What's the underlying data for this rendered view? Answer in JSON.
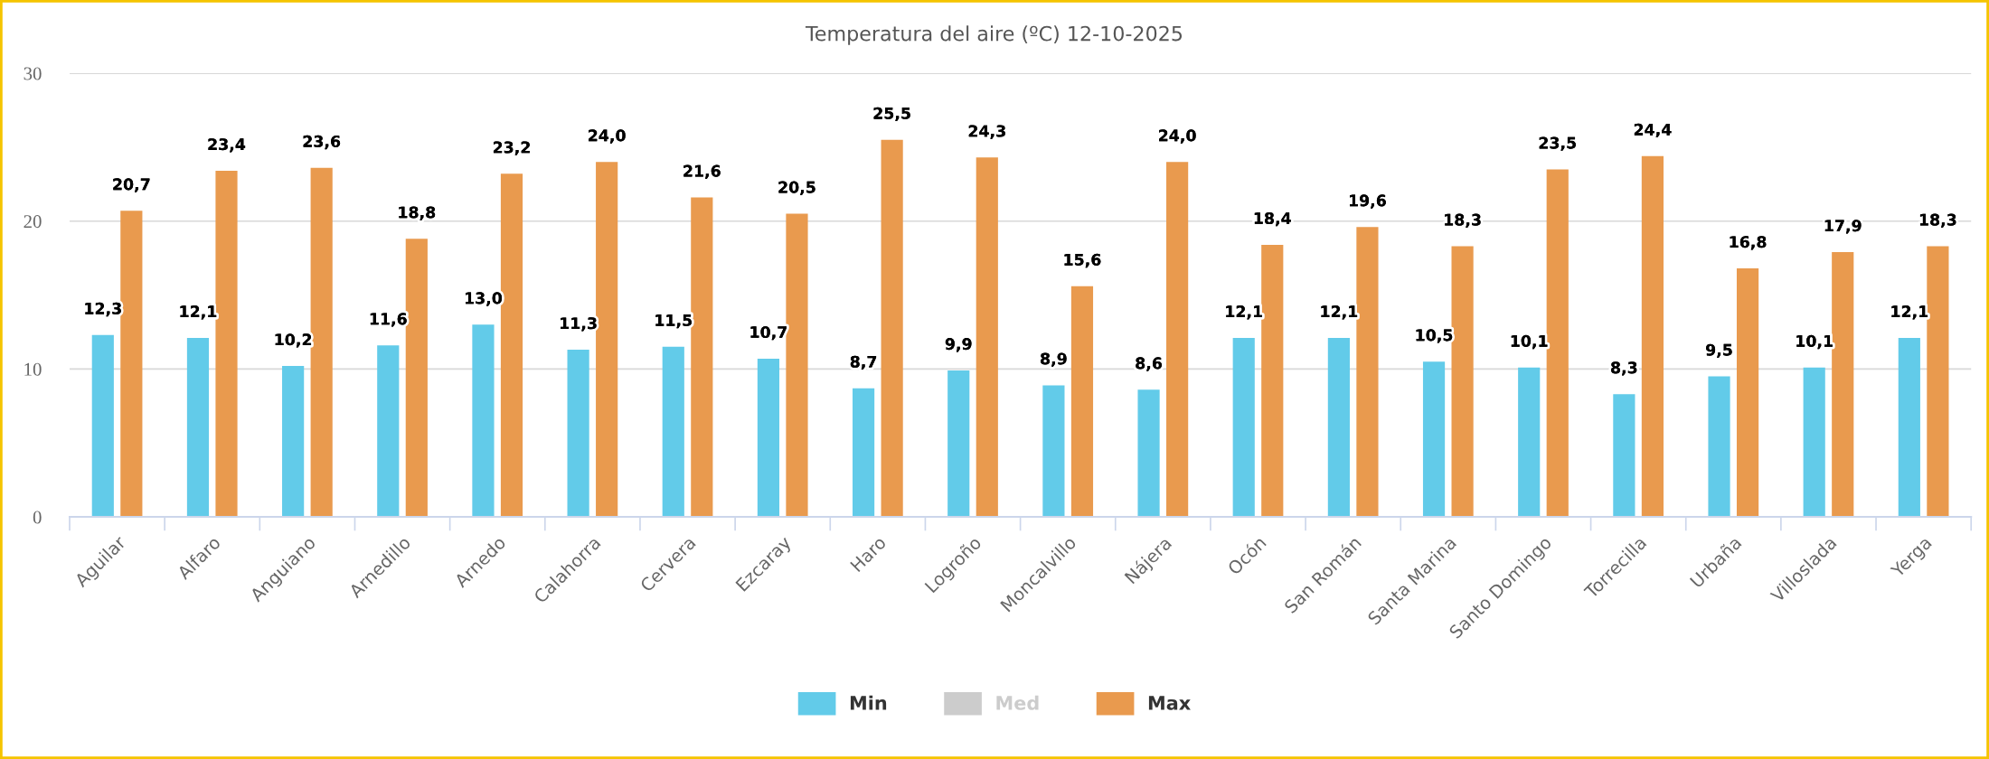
{
  "chart_data": {
    "type": "bar",
    "title": "Temperatura del aire (ºC) 12-10-2025",
    "categories": [
      "Aguilar",
      "Alfaro",
      "Anguiano",
      "Arnedillo",
      "Arnedo",
      "Calahorra",
      "Cervera",
      "Ezcaray",
      "Haro",
      "Logroño",
      "Moncalvillo",
      "Nájera",
      "Ocón",
      "San Román",
      "Santa Marina",
      "Santo Domingo",
      "Torrecilla",
      "Urbaña",
      "Villoslada",
      "Yerga"
    ],
    "series": [
      {
        "name": "Min",
        "color": "#62cbe9",
        "values": [
          12.3,
          12.1,
          10.2,
          11.6,
          13.0,
          11.3,
          11.5,
          10.7,
          8.7,
          9.9,
          8.9,
          8.6,
          12.1,
          12.1,
          10.5,
          10.1,
          8.3,
          9.5,
          10.1,
          12.1
        ],
        "value_labels": [
          "12,3",
          "12,1",
          "10,2",
          "11,6",
          "13,0",
          "11,3",
          "11,5",
          "10,7",
          "8,7",
          "9,9",
          "8,9",
          "8,6",
          "12,1",
          "12,1",
          "10,5",
          "10,1",
          "8,3",
          "9,5",
          "10,1",
          "12,1"
        ]
      },
      {
        "name": "Med",
        "color": "#cccccc",
        "values": [
          null,
          null,
          null,
          null,
          null,
          null,
          null,
          null,
          null,
          null,
          null,
          null,
          null,
          null,
          null,
          null,
          null,
          null,
          null,
          null
        ]
      },
      {
        "name": "Max",
        "color": "#e99a4e",
        "values": [
          20.7,
          23.4,
          23.6,
          18.8,
          23.2,
          24.0,
          21.6,
          20.5,
          25.5,
          24.3,
          15.6,
          24.0,
          18.4,
          19.6,
          18.3,
          23.5,
          24.4,
          16.8,
          17.9,
          18.3
        ],
        "value_labels": [
          "20,7",
          "23,4",
          "23,6",
          "18,8",
          "23,2",
          "24,0",
          "21,6",
          "20,5",
          "25,5",
          "24,3",
          "15,6",
          "24,0",
          "18,4",
          "19,6",
          "18,3",
          "23,5",
          "24,4",
          "16,8",
          "17,9",
          "18,3"
        ]
      }
    ],
    "ylim": [
      0,
      30
    ],
    "yticks": [
      0,
      10,
      20,
      30
    ],
    "grid": "y",
    "legend": "bottom"
  }
}
